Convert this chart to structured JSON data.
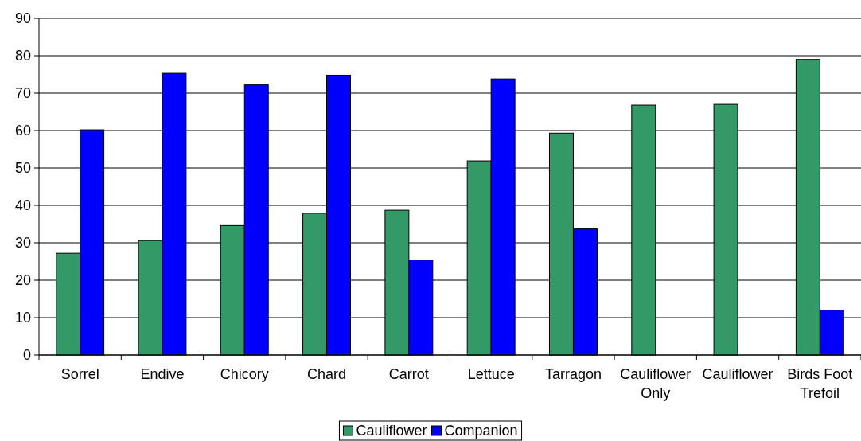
{
  "chart_data": {
    "type": "bar",
    "categories": [
      "Sorrel",
      "Endive",
      "Chicory",
      "Chard",
      "Carrot",
      "Lettuce",
      "Tarragon",
      "Cauliflower Only",
      "Cauliflower",
      "Birds Foot Trefoil"
    ],
    "series": [
      {
        "name": "Cauliflower",
        "color": "#339966",
        "values": [
          27.2,
          30.6,
          34.6,
          37.9,
          38.7,
          51.9,
          59.3,
          66.8,
          67.0,
          79.0
        ]
      },
      {
        "name": "Companion",
        "color": "#0000ff",
        "values": [
          60.2,
          75.3,
          72.2,
          74.8,
          25.4,
          73.8,
          33.7,
          null,
          null,
          12.0
        ]
      }
    ],
    "ylim": [
      0,
      90
    ],
    "yticks": [
      0,
      10,
      20,
      30,
      40,
      50,
      60,
      70,
      80,
      90
    ],
    "grid": "y",
    "legend": "bottom"
  }
}
